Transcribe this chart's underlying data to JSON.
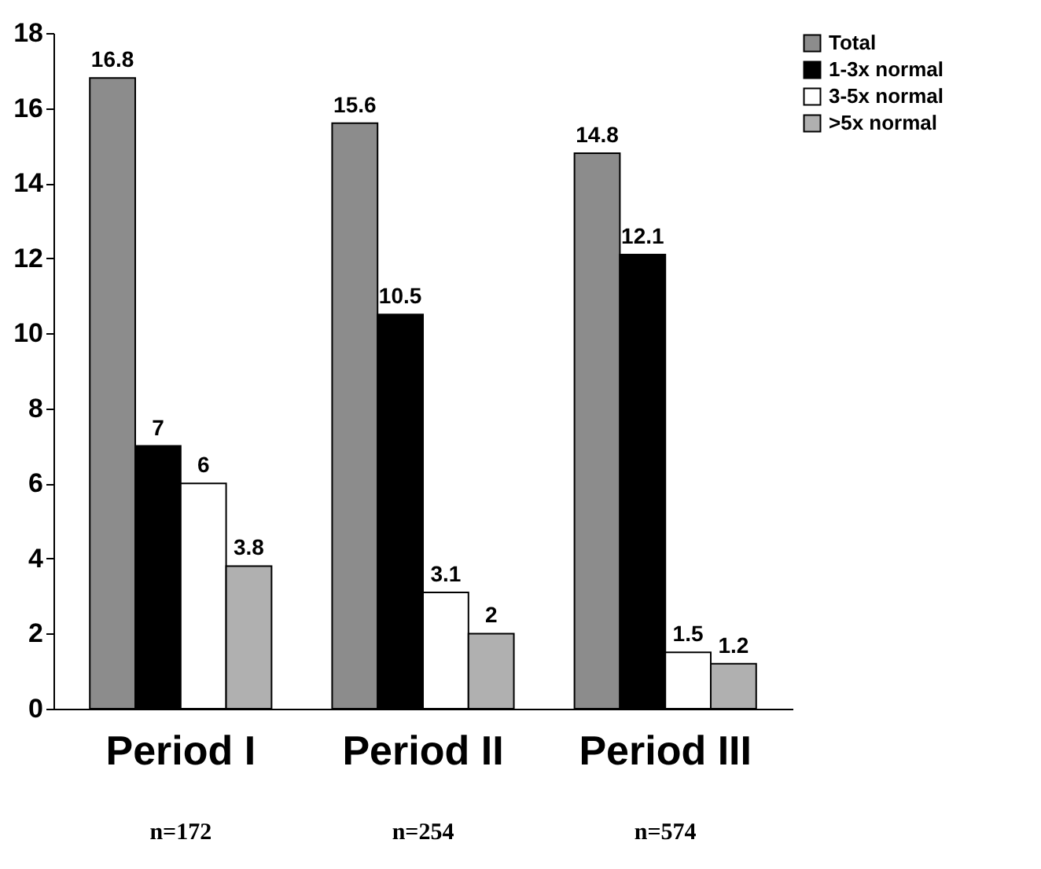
{
  "chart_data": {
    "type": "bar",
    "categories": [
      "Period I",
      "Period II",
      "Period III"
    ],
    "series": [
      {
        "name": "Total",
        "color": "#8c8c8c",
        "values": [
          16.8,
          15.6,
          14.8
        ]
      },
      {
        "name": "1-3x normal",
        "color": "#000000",
        "values": [
          7,
          10.5,
          12.1
        ]
      },
      {
        "name": "3-5x normal",
        "color": "#ffffff",
        "values": [
          6,
          3.1,
          1.5
        ]
      },
      {
        "name": ">5x normal",
        "color": "#b0b0b0",
        "values": [
          3.8,
          2,
          1.2
        ]
      }
    ],
    "ylim": [
      0,
      18
    ],
    "yticks": [
      0,
      2,
      4,
      6,
      8,
      10,
      12,
      14,
      16,
      18
    ],
    "data_labels": true,
    "legend": "top right",
    "annotations": [
      "n=172",
      "n=254",
      "n=574"
    ]
  }
}
